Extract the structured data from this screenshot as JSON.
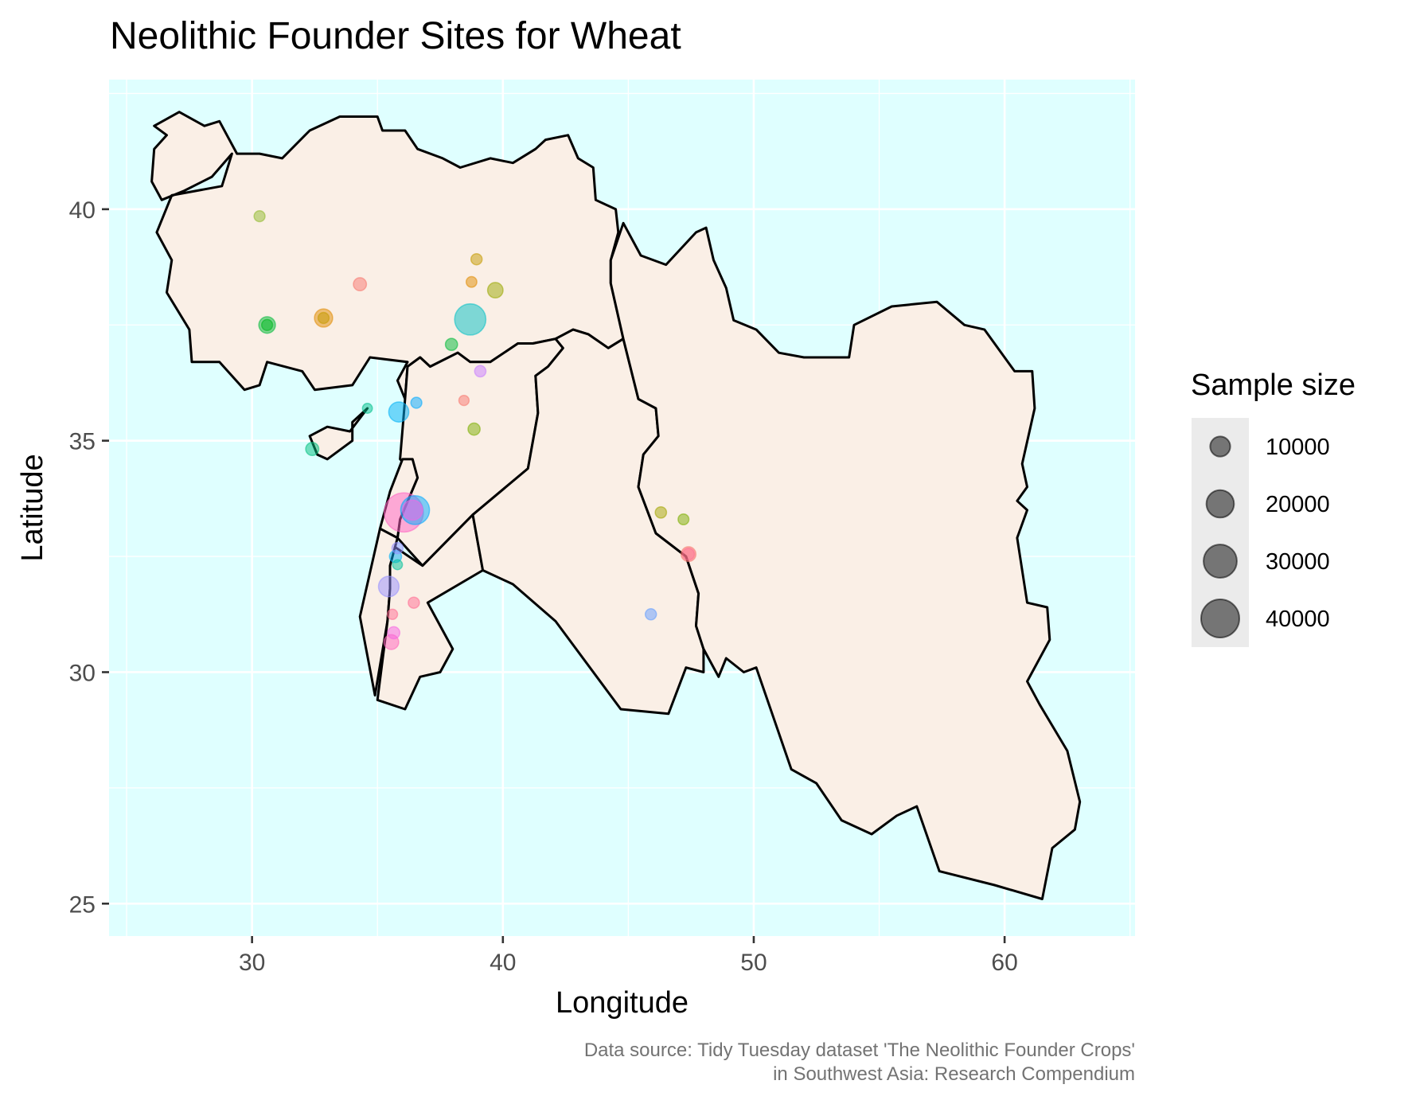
{
  "chart_data": {
    "type": "map-scatter",
    "title": "Neolithic Founder Sites for Wheat",
    "xlabel": "Longitude",
    "ylabel": "Latitude",
    "xlim": [
      24.3,
      65.2
    ],
    "ylim": [
      24.3,
      42.8
    ],
    "x_ticks": [
      30,
      40,
      50,
      60
    ],
    "y_ticks": [
      25,
      30,
      35,
      40
    ],
    "x_minor": [
      25,
      35,
      45,
      55,
      65
    ],
    "y_minor": [
      27.5,
      32.5,
      37.5,
      42.5
    ],
    "grid": true,
    "colors": {
      "panel_background": "#dfffff",
      "land_fill": "#faefe6",
      "border": "#000000",
      "grid": "#ffffff"
    },
    "map_outlines": [
      {
        "name": "Turkey",
        "coords": [
          [
            28.1,
            41.8
          ],
          [
            28.7,
            41.9
          ],
          [
            29.0,
            41.6
          ],
          [
            29.4,
            41.2
          ],
          [
            30.3,
            41.2
          ],
          [
            31.2,
            41.1
          ],
          [
            32.3,
            41.7
          ],
          [
            33.5,
            42.0
          ],
          [
            35.0,
            42.0
          ],
          [
            35.2,
            41.7
          ],
          [
            36.1,
            41.7
          ],
          [
            36.6,
            41.3
          ],
          [
            37.6,
            41.1
          ],
          [
            38.3,
            40.9
          ],
          [
            39.5,
            41.1
          ],
          [
            40.4,
            41.0
          ],
          [
            41.3,
            41.3
          ],
          [
            41.7,
            41.5
          ],
          [
            42.6,
            41.6
          ],
          [
            43.0,
            41.1
          ],
          [
            43.6,
            40.9
          ],
          [
            43.7,
            40.2
          ],
          [
            44.5,
            40.0
          ],
          [
            44.6,
            39.5
          ],
          [
            44.3,
            38.9
          ],
          [
            44.3,
            38.4
          ],
          [
            44.8,
            37.2
          ],
          [
            44.2,
            37.0
          ],
          [
            43.4,
            37.3
          ],
          [
            42.8,
            37.4
          ],
          [
            42.1,
            37.2
          ],
          [
            41.2,
            37.1
          ],
          [
            40.6,
            37.1
          ],
          [
            39.5,
            36.7
          ],
          [
            38.7,
            36.7
          ],
          [
            38.2,
            36.9
          ],
          [
            37.1,
            36.6
          ],
          [
            36.7,
            36.8
          ],
          [
            36.2,
            36.6
          ],
          [
            36.1,
            35.9
          ],
          [
            35.8,
            36.3
          ],
          [
            36.2,
            36.7
          ],
          [
            34.7,
            36.8
          ],
          [
            34.0,
            36.2
          ],
          [
            32.5,
            36.1
          ],
          [
            32.0,
            36.5
          ],
          [
            30.6,
            36.7
          ],
          [
            30.3,
            36.2
          ],
          [
            29.7,
            36.1
          ],
          [
            28.7,
            36.7
          ],
          [
            27.6,
            36.7
          ],
          [
            27.5,
            37.4
          ],
          [
            26.6,
            38.2
          ],
          [
            26.8,
            38.9
          ],
          [
            26.2,
            39.5
          ],
          [
            26.8,
            40.3
          ],
          [
            28.8,
            40.5
          ],
          [
            29.2,
            41.2
          ],
          [
            28.4,
            40.7
          ],
          [
            27.3,
            40.4
          ],
          [
            26.4,
            40.2
          ],
          [
            26.0,
            40.6
          ],
          [
            26.1,
            41.3
          ],
          [
            26.6,
            41.6
          ],
          [
            26.1,
            41.8
          ],
          [
            27.1,
            42.1
          ],
          [
            28.1,
            41.8
          ]
        ]
      },
      {
        "name": "Syria",
        "coords": [
          [
            36.1,
            35.9
          ],
          [
            36.2,
            36.6
          ],
          [
            36.7,
            36.8
          ],
          [
            37.1,
            36.6
          ],
          [
            38.2,
            36.9
          ],
          [
            38.7,
            36.7
          ],
          [
            39.5,
            36.7
          ],
          [
            40.6,
            37.1
          ],
          [
            41.2,
            37.1
          ],
          [
            42.1,
            37.2
          ],
          [
            42.4,
            37.0
          ],
          [
            41.8,
            36.6
          ],
          [
            41.3,
            36.4
          ],
          [
            41.4,
            35.6
          ],
          [
            41.0,
            34.4
          ],
          [
            38.8,
            33.4
          ],
          [
            36.8,
            32.3
          ],
          [
            35.8,
            32.9
          ],
          [
            35.9,
            33.3
          ],
          [
            36.6,
            34.2
          ],
          [
            35.9,
            34.6
          ],
          [
            36.1,
            35.9
          ]
        ]
      },
      {
        "name": "Lebanon",
        "coords": [
          [
            35.1,
            33.1
          ],
          [
            35.5,
            33.9
          ],
          [
            36.0,
            34.6
          ],
          [
            36.4,
            34.6
          ],
          [
            36.6,
            34.2
          ],
          [
            35.9,
            33.3
          ],
          [
            35.8,
            32.9
          ],
          [
            35.1,
            33.1
          ]
        ]
      },
      {
        "name": "Israel-Palestine",
        "coords": [
          [
            35.7,
            32.7
          ],
          [
            35.8,
            32.9
          ],
          [
            35.1,
            33.1
          ],
          [
            34.3,
            31.2
          ],
          [
            34.9,
            29.5
          ],
          [
            35.4,
            31.1
          ],
          [
            35.5,
            31.8
          ],
          [
            35.7,
            32.7
          ]
        ]
      },
      {
        "name": "Jordan",
        "coords": [
          [
            35.5,
            32.3
          ],
          [
            35.7,
            32.7
          ],
          [
            36.8,
            32.3
          ],
          [
            38.8,
            33.4
          ],
          [
            39.2,
            32.2
          ],
          [
            37.0,
            31.5
          ],
          [
            38.0,
            30.5
          ],
          [
            37.5,
            30.0
          ],
          [
            36.7,
            29.9
          ],
          [
            36.1,
            29.2
          ],
          [
            35.0,
            29.4
          ],
          [
            35.4,
            31.1
          ],
          [
            35.5,
            31.8
          ],
          [
            35.5,
            32.3
          ]
        ]
      },
      {
        "name": "Cyprus",
        "coords": [
          [
            32.3,
            35.1
          ],
          [
            33.0,
            35.3
          ],
          [
            33.9,
            35.2
          ],
          [
            34.6,
            35.7
          ],
          [
            34.0,
            35.4
          ],
          [
            34.0,
            35.0
          ],
          [
            33.0,
            34.6
          ],
          [
            32.6,
            34.7
          ],
          [
            32.3,
            35.1
          ]
        ]
      },
      {
        "name": "Iraq",
        "coords": [
          [
            39.2,
            32.2
          ],
          [
            38.8,
            33.4
          ],
          [
            41.0,
            34.4
          ],
          [
            41.4,
            35.6
          ],
          [
            41.3,
            36.4
          ],
          [
            41.8,
            36.6
          ],
          [
            42.4,
            37.0
          ],
          [
            42.1,
            37.2
          ],
          [
            42.8,
            37.4
          ],
          [
            43.4,
            37.3
          ],
          [
            44.2,
            37.0
          ],
          [
            44.8,
            37.2
          ],
          [
            45.4,
            35.9
          ],
          [
            46.1,
            35.7
          ],
          [
            46.2,
            35.1
          ],
          [
            45.6,
            34.7
          ],
          [
            45.4,
            34.0
          ],
          [
            46.1,
            33.0
          ],
          [
            47.3,
            32.5
          ],
          [
            47.8,
            31.7
          ],
          [
            47.7,
            31.0
          ],
          [
            48.0,
            30.5
          ],
          [
            48.0,
            30.0
          ],
          [
            47.3,
            30.1
          ],
          [
            46.6,
            29.1
          ],
          [
            44.7,
            29.2
          ],
          [
            42.1,
            31.1
          ],
          [
            40.4,
            31.9
          ],
          [
            39.2,
            32.2
          ]
        ]
      },
      {
        "name": "Iran",
        "coords": [
          [
            44.8,
            39.7
          ],
          [
            45.5,
            39.0
          ],
          [
            46.5,
            38.8
          ],
          [
            47.7,
            39.5
          ],
          [
            48.1,
            39.6
          ],
          [
            48.4,
            38.9
          ],
          [
            48.9,
            38.3
          ],
          [
            49.2,
            37.6
          ],
          [
            50.1,
            37.4
          ],
          [
            51.0,
            36.9
          ],
          [
            52.0,
            36.8
          ],
          [
            53.8,
            36.8
          ],
          [
            54.0,
            37.5
          ],
          [
            55.5,
            37.9
          ],
          [
            57.3,
            38.0
          ],
          [
            58.4,
            37.5
          ],
          [
            59.2,
            37.4
          ],
          [
            60.4,
            36.5
          ],
          [
            61.1,
            36.5
          ],
          [
            61.2,
            35.7
          ],
          [
            60.7,
            34.5
          ],
          [
            60.9,
            34.0
          ],
          [
            60.5,
            33.7
          ],
          [
            60.9,
            33.5
          ],
          [
            60.5,
            32.9
          ],
          [
            60.9,
            31.5
          ],
          [
            61.7,
            31.4
          ],
          [
            61.8,
            30.7
          ],
          [
            60.9,
            29.8
          ],
          [
            61.4,
            29.3
          ],
          [
            62.5,
            28.3
          ],
          [
            63.0,
            27.2
          ],
          [
            62.8,
            26.6
          ],
          [
            61.9,
            26.2
          ],
          [
            61.5,
            25.1
          ],
          [
            59.6,
            25.4
          ],
          [
            57.4,
            25.7
          ],
          [
            56.5,
            27.1
          ],
          [
            55.7,
            26.9
          ],
          [
            54.7,
            26.5
          ],
          [
            53.5,
            26.8
          ],
          [
            52.5,
            27.6
          ],
          [
            51.5,
            27.9
          ],
          [
            50.1,
            30.1
          ],
          [
            49.6,
            30.0
          ],
          [
            48.9,
            30.3
          ],
          [
            48.6,
            29.9
          ],
          [
            48.0,
            30.5
          ],
          [
            47.7,
            31.0
          ],
          [
            47.8,
            31.7
          ],
          [
            47.3,
            32.5
          ],
          [
            46.1,
            33.0
          ],
          [
            45.4,
            34.0
          ],
          [
            45.6,
            34.7
          ],
          [
            46.2,
            35.1
          ],
          [
            46.1,
            35.7
          ],
          [
            45.4,
            35.9
          ],
          [
            44.8,
            37.2
          ],
          [
            44.3,
            38.4
          ],
          [
            44.3,
            38.9
          ],
          [
            44.8,
            39.7
          ]
        ]
      }
    ],
    "points": [
      {
        "x": 30.3,
        "y": 39.85,
        "size": 2500,
        "color": "#8fb92b"
      },
      {
        "x": 34.3,
        "y": 38.38,
        "size": 3800,
        "color": "#f8766d"
      },
      {
        "x": 32.85,
        "y": 37.65,
        "size": 8000,
        "color": "#e08b00"
      },
      {
        "x": 32.85,
        "y": 37.65,
        "size": 2500,
        "color": "#c49a00"
      },
      {
        "x": 30.6,
        "y": 37.5,
        "size": 6500,
        "color": "#00ba38"
      },
      {
        "x": 30.6,
        "y": 37.5,
        "size": 2500,
        "color": "#00b81f"
      },
      {
        "x": 38.95,
        "y": 38.92,
        "size": 2600,
        "color": "#c49a00"
      },
      {
        "x": 38.75,
        "y": 38.43,
        "size": 2300,
        "color": "#e08b00"
      },
      {
        "x": 39.7,
        "y": 38.25,
        "size": 5500,
        "color": "#99a800"
      },
      {
        "x": 38.7,
        "y": 37.62,
        "size": 26000,
        "color": "#00bfc4"
      },
      {
        "x": 37.95,
        "y": 37.08,
        "size": 3200,
        "color": "#00ba38"
      },
      {
        "x": 39.1,
        "y": 36.5,
        "size": 2700,
        "color": "#c77cff"
      },
      {
        "x": 38.45,
        "y": 35.87,
        "size": 2100,
        "color": "#f8766d"
      },
      {
        "x": 36.55,
        "y": 35.82,
        "size": 2500,
        "color": "#00a9ff"
      },
      {
        "x": 34.6,
        "y": 35.7,
        "size": 1900,
        "color": "#00c08b"
      },
      {
        "x": 35.85,
        "y": 35.62,
        "size": 10000,
        "color": "#00b0f6"
      },
      {
        "x": 38.85,
        "y": 35.25,
        "size": 3200,
        "color": "#7cae00"
      },
      {
        "x": 32.4,
        "y": 34.82,
        "size": 3800,
        "color": "#00bf7d"
      },
      {
        "x": 36.05,
        "y": 33.45,
        "size": 42000,
        "color": "#ff61c3"
      },
      {
        "x": 36.5,
        "y": 33.5,
        "size": 22000,
        "color": "#00a9ff"
      },
      {
        "x": 36.4,
        "y": 33.5,
        "size": 10000,
        "color": "#f564e3"
      },
      {
        "x": 35.8,
        "y": 32.68,
        "size": 2600,
        "color": "#9590ff"
      },
      {
        "x": 35.72,
        "y": 32.5,
        "size": 3200,
        "color": "#00b0f6"
      },
      {
        "x": 35.8,
        "y": 32.32,
        "size": 1900,
        "color": "#00c19a"
      },
      {
        "x": 35.45,
        "y": 31.85,
        "size": 10500,
        "color": "#9590ff"
      },
      {
        "x": 36.45,
        "y": 31.5,
        "size": 2600,
        "color": "#ff6c91"
      },
      {
        "x": 35.6,
        "y": 31.25,
        "size": 2100,
        "color": "#ff6c91"
      },
      {
        "x": 35.65,
        "y": 30.85,
        "size": 3200,
        "color": "#f564e3"
      },
      {
        "x": 35.55,
        "y": 30.65,
        "size": 5000,
        "color": "#ff62bc"
      },
      {
        "x": 45.9,
        "y": 31.25,
        "size": 2600,
        "color": "#619cff"
      },
      {
        "x": 46.3,
        "y": 33.45,
        "size": 2700,
        "color": "#a3a500"
      },
      {
        "x": 47.2,
        "y": 33.3,
        "size": 2400,
        "color": "#7cae00"
      },
      {
        "x": 47.4,
        "y": 32.55,
        "size": 5000,
        "color": "#f8766d"
      },
      {
        "x": 47.4,
        "y": 32.55,
        "size": 3000,
        "color": "#ff6c91"
      }
    ],
    "legend": {
      "title": "Sample size",
      "placement": "right",
      "entries": [
        {
          "label": "10000",
          "value": 10000
        },
        {
          "label": "20000",
          "value": 20000
        },
        {
          "label": "30000",
          "value": 30000
        },
        {
          "label": "40000",
          "value": 40000
        }
      ]
    }
  },
  "caption": {
    "line1": "Data source: Tidy Tuesday dataset 'The Neolithic Founder Crops'",
    "line2": "in Southwest Asia: Research Compendium"
  }
}
